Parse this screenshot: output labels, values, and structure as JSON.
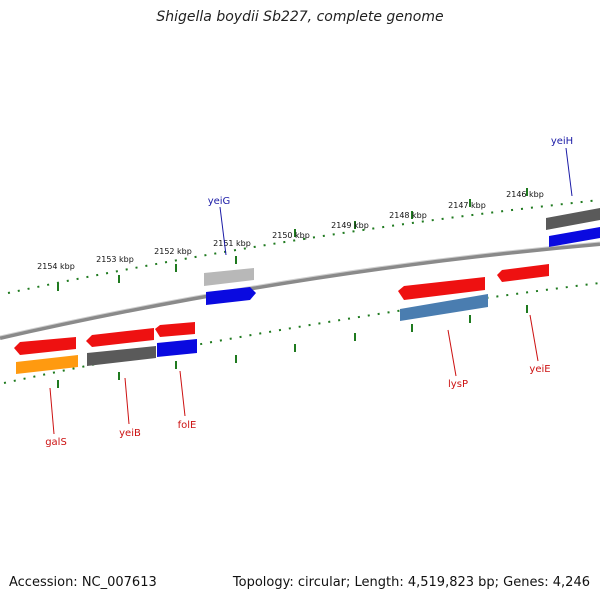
{
  "title": "Shigella boydii Sb227, complete genome",
  "accession_label": "Accession: NC_007613",
  "summary_label": "Topology: circular; Length: 4,519,823 bp; Genes: 4,246",
  "ticks": [
    "2146 kbp",
    "2147 kbp",
    "2148 kbp",
    "2149 kbp",
    "2150 kbp",
    "2151 kbp",
    "2152 kbp",
    "2153 kbp",
    "2154 kbp"
  ],
  "genes": [
    {
      "name": "yeiH",
      "label_color": "#1a1aa6"
    },
    {
      "name": "yeiG",
      "label_color": "#1a1aa6"
    },
    {
      "name": "galS",
      "label_color": "#cc1111"
    },
    {
      "name": "yeiB",
      "label_color": "#cc1111"
    },
    {
      "name": "folE",
      "label_color": "#cc1111"
    },
    {
      "name": "lysP",
      "label_color": "#cc1111"
    },
    {
      "name": "yeiE",
      "label_color": "#cc1111"
    }
  ],
  "colors": {
    "tick": "#1f7a1f",
    "backbone": "#888888",
    "red": "#ee1111",
    "blue": "#0a0ae0",
    "dark_gray": "#5a5a5a",
    "light_gray": "#b8b8b8",
    "orange": "#ff9a10",
    "steel_blue": "#4a7db0"
  }
}
